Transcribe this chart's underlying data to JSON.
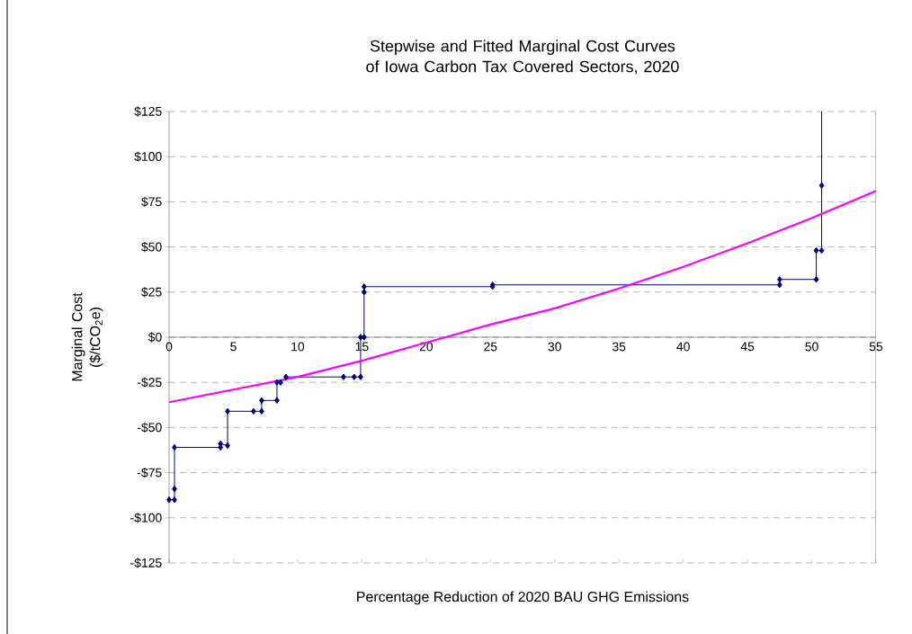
{
  "chart_data": {
    "type": "line",
    "title": "Stepwise and Fitted Marginal Cost Curves of Iowa Carbon Tax Covered Sectors, 2020",
    "xlabel": "Percentage Reduction of 2020 BAU GHG Emissions",
    "ylabel": "Marginal Cost ($/tCO$_{2}$e)",
    "xlim": [
      0,
      55
    ],
    "ylim": [
      -125,
      125
    ],
    "xticks": [
      0,
      5,
      10,
      15,
      20,
      25,
      30,
      35,
      40,
      45,
      50,
      55
    ],
    "yticks": [
      {
        "value": -125,
        "label": "-$125"
      },
      {
        "value": -100,
        "label": "-$100"
      },
      {
        "value": -75,
        "label": "-$75"
      },
      {
        "value": -50,
        "label": "-$50"
      },
      {
        "value": -25,
        "label": "-$25"
      },
      {
        "value": 0,
        "label": "$0"
      },
      {
        "value": 25,
        "label": "$25"
      },
      {
        "value": 50,
        "label": "$50"
      },
      {
        "value": 75,
        "label": "$75"
      },
      {
        "value": 100,
        "label": "$100"
      },
      {
        "value": 125,
        "label": "$125"
      }
    ],
    "grid": "y",
    "legend": false,
    "series": [
      {
        "type": "line",
        "color": "#000080",
        "marker": "diamond",
        "x": [
          0,
          0.42,
          0.42,
          0.42,
          4.0,
          4.0,
          4.55,
          4.55,
          6.57,
          7.2,
          7.2,
          8.39,
          8.39,
          8.67,
          9.09,
          13.57,
          14.4,
          14.9,
          14.9,
          15.17,
          15.17,
          15.17,
          25.17,
          25.17,
          47.5,
          47.5,
          50.35,
          50.35,
          50.77,
          50.77
        ],
        "values": [
          -90,
          -90,
          -84,
          -61,
          -61,
          -59,
          -60,
          -41,
          -41,
          -41,
          -35,
          -35,
          -25,
          -25,
          -22,
          -22,
          -22,
          -22,
          0,
          0,
          25,
          28,
          28,
          29,
          29,
          32,
          32,
          48,
          48,
          84
        ]
      },
      {
        "type": "line",
        "color": "#000080",
        "marker": "none",
        "x": [
          50.77,
          50.77
        ],
        "values": [
          84,
          125
        ]
      },
      {
        "type": "line",
        "color": "#ff00ff",
        "marker": "none",
        "x": [
          0,
          5,
          10,
          15,
          20,
          25,
          30,
          35,
          40,
          45,
          50,
          55
        ],
        "values": [
          -36,
          -29,
          -22,
          -13,
          -3,
          7,
          16,
          27,
          39,
          52,
          66,
          81
        ]
      }
    ]
  }
}
